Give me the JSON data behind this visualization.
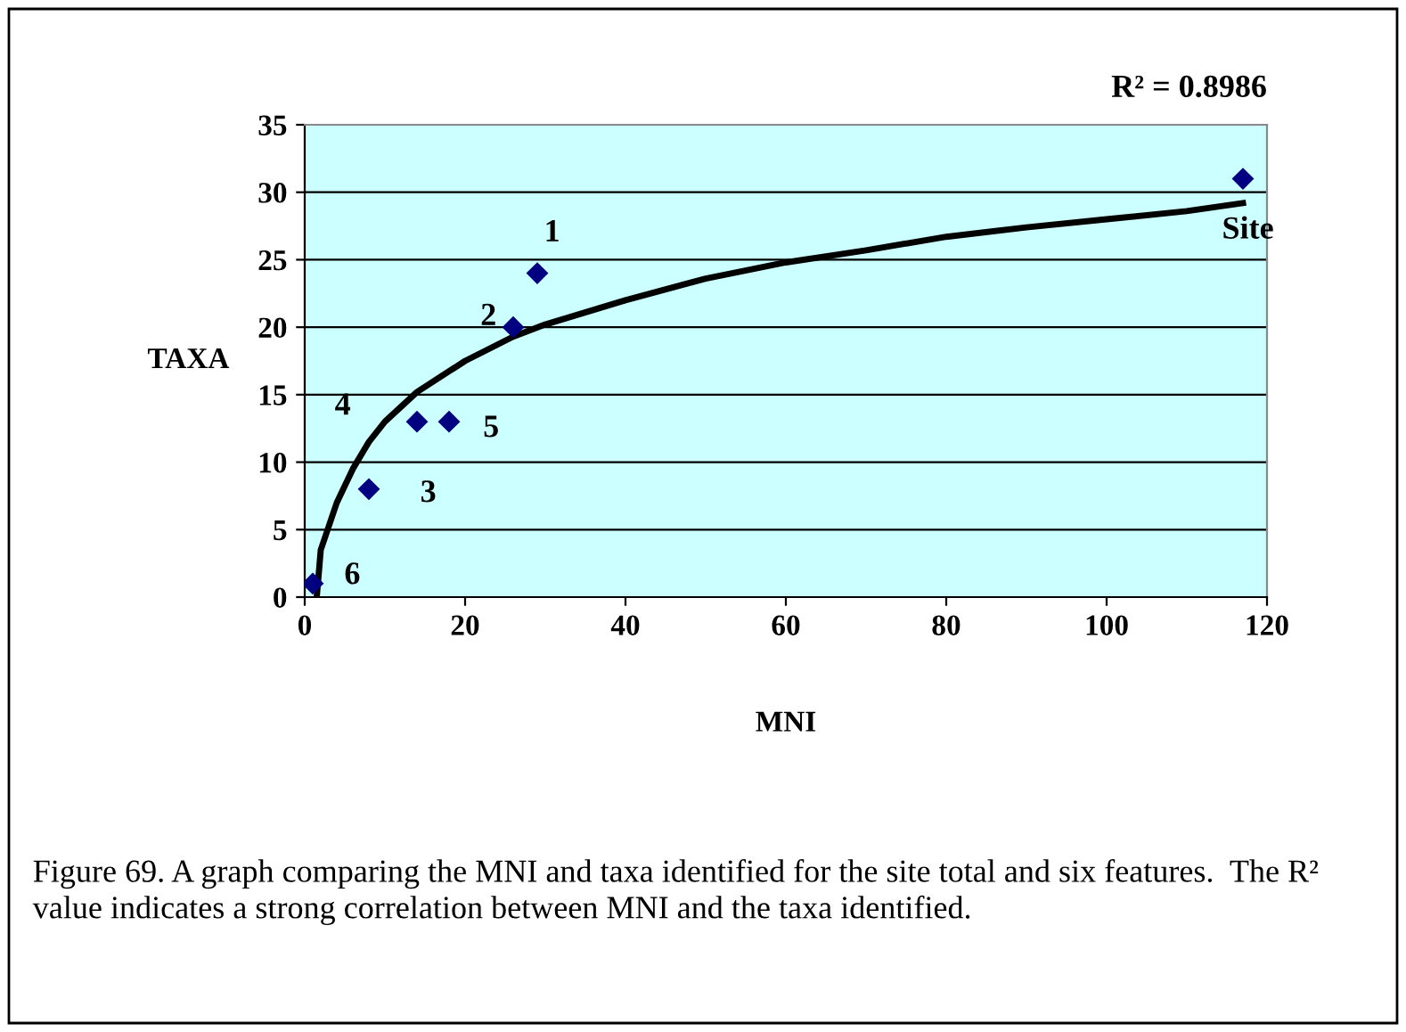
{
  "chart_data": {
    "type": "scatter",
    "xlabel": "MNI",
    "ylabel": "TAXA",
    "xlim": [
      0,
      120
    ],
    "xticks": [
      0,
      20,
      40,
      60,
      80,
      100,
      120
    ],
    "ylim": [
      0,
      35
    ],
    "yticks": [
      0,
      5,
      10,
      15,
      20,
      25,
      30,
      35
    ],
    "grid": "y",
    "legend": false,
    "marker": "diamond",
    "series": [
      {
        "color": "#000080",
        "x": [
          1,
          8,
          14,
          18,
          26,
          29,
          117
        ],
        "values": [
          1,
          8,
          13,
          13,
          20,
          24,
          31
        ]
      },
      {
        "type": "line",
        "color": "#000000",
        "line_style": "solid",
        "marker": "none",
        "x": [
          1.5,
          2,
          4,
          6,
          8,
          10,
          14,
          20,
          26,
          30,
          40,
          50,
          60,
          70,
          80,
          90,
          100,
          110,
          117
        ],
        "values": [
          0,
          3.5,
          7,
          9.5,
          11.5,
          13,
          15.2,
          17.5,
          19.3,
          20.2,
          22,
          23.6,
          24.8,
          25.7,
          26.7,
          27.4,
          28,
          28.6,
          29.2
        ]
      }
    ],
    "annotations": [
      {
        "text": "1",
        "x": 29,
        "y": 24
      },
      {
        "text": "2",
        "x": 26,
        "y": 20
      },
      {
        "text": "3",
        "x": 8,
        "y": 8
      },
      {
        "text": "4",
        "x": 14,
        "y": 13
      },
      {
        "text": "5",
        "x": 18,
        "y": 13
      },
      {
        "text": "6",
        "x": 1,
        "y": 1
      },
      {
        "text": "Site",
        "x": 117,
        "y": 31
      },
      "R² = 0.8986",
      "Figure 69. A graph comparing the MNI and taxa identified for the site total and six features.  The R² value indicates a strong correlation between MNI and the taxa identified."
    ]
  }
}
